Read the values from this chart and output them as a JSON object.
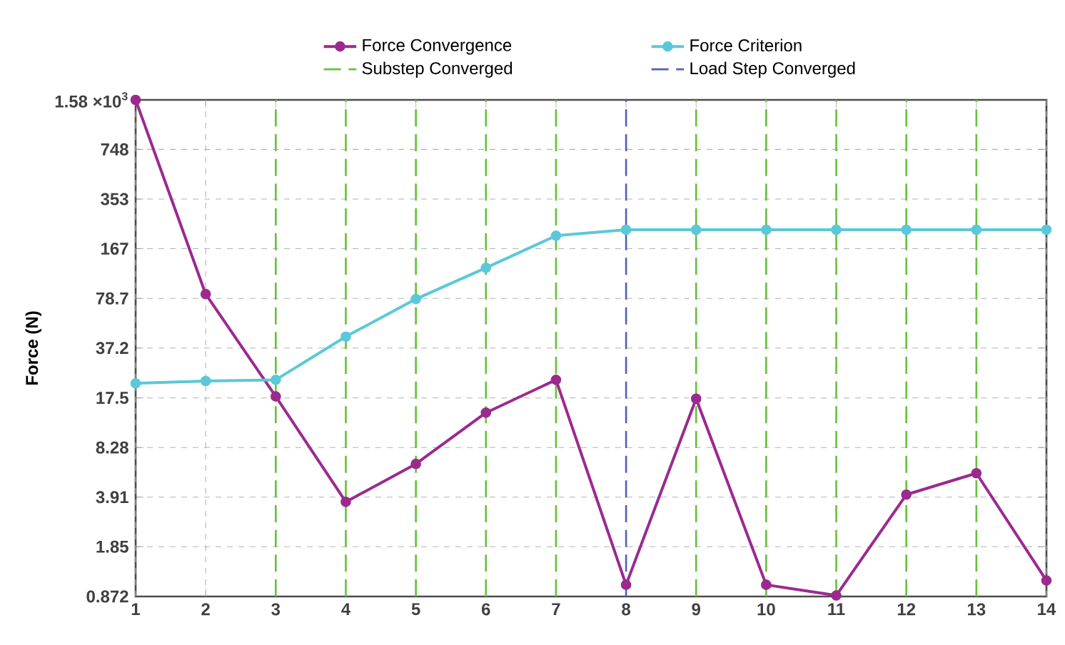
{
  "chart_data": {
    "type": "line",
    "ylabel": "Force (N)",
    "x": [
      1,
      2,
      3,
      4,
      5,
      6,
      7,
      8,
      9,
      10,
      11,
      12,
      13,
      14
    ],
    "series": [
      {
        "name": "Force Convergence",
        "color": "#9b2a8f",
        "values": [
          1580,
          84,
          17.9,
          3.64,
          6.46,
          14.0,
          23.0,
          1.04,
          17.3,
          1.04,
          0.885,
          4.06,
          5.61,
          1.11
        ]
      },
      {
        "name": "Force Criterion",
        "color": "#5bc8d8",
        "values": [
          21.8,
          22.6,
          23.0,
          44.2,
          78.0,
          125,
          203,
          222,
          222,
          222,
          222,
          222,
          222,
          222
        ]
      }
    ],
    "xlim": [
      1,
      14
    ],
    "xticks": [
      1,
      2,
      3,
      4,
      5,
      6,
      7,
      8,
      9,
      10,
      11,
      12,
      13,
      14
    ],
    "ylim": [
      0.872,
      1580
    ],
    "yticks": [
      0.872,
      1.85,
      3.91,
      8.28,
      17.5,
      37.2,
      78.7,
      167,
      353,
      748,
      {
        "value": 1580,
        "label": "1.58 ×10$^{3}$"
      }
    ],
    "log": "y",
    "grid": true,
    "legend": "top",
    "marker": "circle",
    "line_style": "solid",
    "ref_lines": [
      {
        "axis": "x",
        "value": 3,
        "label": "Substep Converged",
        "color": "#66c23a",
        "line_style": "dashed"
      },
      {
        "axis": "x",
        "value": 4,
        "color": "#66c23a",
        "line_style": "dashed"
      },
      {
        "axis": "x",
        "value": 5,
        "color": "#66c23a",
        "line_style": "dashed"
      },
      {
        "axis": "x",
        "value": 6,
        "color": "#66c23a",
        "line_style": "dashed"
      },
      {
        "axis": "x",
        "value": 7,
        "color": "#66c23a",
        "line_style": "dashed"
      },
      {
        "axis": "x",
        "value": 8,
        "label": "Load Step Converged",
        "color": "#5060b8",
        "line_style": "dashed"
      },
      {
        "axis": "x",
        "value": 9,
        "color": "#66c23a",
        "line_style": "dashed"
      },
      {
        "axis": "x",
        "value": 10,
        "color": "#66c23a",
        "line_style": "dashed"
      },
      {
        "axis": "x",
        "value": 11,
        "color": "#66c23a",
        "line_style": "dashed"
      },
      {
        "axis": "x",
        "value": 12,
        "color": "#66c23a",
        "line_style": "dashed"
      },
      {
        "axis": "x",
        "value": 13,
        "color": "#66c23a",
        "line_style": "dashed"
      }
    ]
  }
}
